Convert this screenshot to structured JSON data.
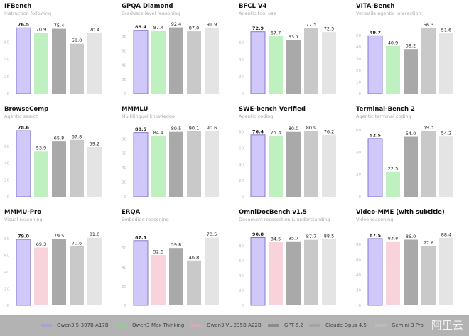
{
  "legend": [
    {
      "name": "Qwen3.5-397B-A17B",
      "color": "#cfc8f8",
      "border": "#7b6ec9"
    },
    {
      "name": "Qwen3-Max-Thinking",
      "color": "#bff0c0"
    },
    {
      "name": "Qwen3-VL-235B-A22B",
      "color": "#f9d3dc"
    },
    {
      "name": "GPT-5.2",
      "color": "#a9a9a9"
    },
    {
      "name": "Claude Opus 4.5",
      "color": "#c9c9c9"
    },
    {
      "name": "Gemini 3 Pro",
      "color": "#e4e4e4"
    }
  ],
  "watermark": "阿里云",
  "chart_data": [
    {
      "type": "bar",
      "title": "IFBench",
      "subtitle": "Instruction following",
      "categories": [
        "Qwen3.5-397B-A17B",
        "Qwen3-Max-Thinking",
        "GPT-5.2",
        "Claude Opus 4.5",
        "Gemini 3 Pro"
      ],
      "values": [
        76.5,
        70.9,
        75.4,
        58.0,
        70.4
      ],
      "yticks": [
        0,
        20,
        40,
        60
      ],
      "ylim": [
        0,
        80
      ]
    },
    {
      "type": "bar",
      "title": "GPQA Diamond",
      "subtitle": "Graduate-level reasoning",
      "categories": [
        "Qwen3.5-397B-A17B",
        "Qwen3-Max-Thinking",
        "GPT-5.2",
        "Claude Opus 4.5",
        "Gemini 3 Pro"
      ],
      "values": [
        88.4,
        87.4,
        92.4,
        87.0,
        91.9
      ],
      "yticks": [
        0,
        20,
        40,
        60,
        80
      ],
      "ylim": [
        0,
        96
      ]
    },
    {
      "type": "bar",
      "title": "BFCL V4",
      "subtitle": "Agentic tool use",
      "categories": [
        "Qwen3.5-397B-A17B",
        "Qwen3-Max-Thinking",
        "GPT-5.2",
        "Claude Opus 4.5",
        "Gemini 3 Pro"
      ],
      "values": [
        72.9,
        67.7,
        63.1,
        77.5,
        72.5
      ],
      "yticks": [
        0,
        20,
        40,
        60
      ],
      "ylim": [
        0,
        81
      ]
    },
    {
      "type": "bar",
      "title": "VITA-Bench",
      "subtitle": "Versatile agentic interaction",
      "categories": [
        "Qwen3.5-397B-A17B",
        "Qwen3-Max-Thinking",
        "GPT-5.2",
        "Claude Opus 4.5",
        "Gemini 3 Pro"
      ],
      "values": [
        49.7,
        40.9,
        38.2,
        56.3,
        51.6
      ],
      "yticks": [
        0,
        10,
        20,
        30,
        40,
        50
      ],
      "ylim": [
        0,
        59
      ]
    },
    {
      "type": "bar",
      "title": "BrowseComp",
      "subtitle": "Agentic search",
      "categories": [
        "Qwen3.5-397B-A17B",
        "Qwen3-Max-Thinking",
        "GPT-5.2",
        "Claude Opus 4.5",
        "Gemini 3 Pro"
      ],
      "values": [
        78.6,
        53.9,
        65.8,
        67.8,
        59.2
      ],
      "yticks": [
        0,
        20,
        40,
        60
      ],
      "ylim": [
        0,
        82
      ]
    },
    {
      "type": "bar",
      "title": "MMMLU",
      "subtitle": "Multilingual knowledge",
      "categories": [
        "Qwen3.5-397B-A17B",
        "Qwen3-Max-Thinking",
        "GPT-5.2",
        "Claude Opus 4.5",
        "Gemini 3 Pro"
      ],
      "values": [
        88.5,
        84.4,
        89.5,
        90.1,
        90.6
      ],
      "yticks": [
        0,
        20,
        40,
        60,
        80
      ],
      "ylim": [
        0,
        95
      ]
    },
    {
      "type": "bar",
      "title": "SWE-bench Verified",
      "subtitle": "Agentic coding",
      "categories": [
        "Qwen3.5-397B-A17B",
        "Qwen3-Max-Thinking",
        "GPT-5.2",
        "Claude Opus 4.5",
        "Gemini 3 Pro"
      ],
      "values": [
        76.4,
        75.3,
        80.0,
        80.9,
        76.2
      ],
      "yticks": [
        0,
        20,
        40,
        60,
        80
      ],
      "ylim": [
        0,
        85
      ]
    },
    {
      "type": "bar",
      "title": "Terminal-Bench 2",
      "subtitle": "Agentic terminal coding",
      "categories": [
        "Qwen3.5-397B-A17B",
        "Qwen3-Max-Thinking",
        "GPT-5.2",
        "Claude Opus 4.5",
        "Gemini 3 Pro"
      ],
      "values": [
        52.5,
        22.5,
        54.0,
        59.3,
        54.2
      ],
      "yticks": [
        0,
        20,
        40,
        60
      ],
      "ylim": [
        0,
        62
      ]
    },
    {
      "type": "bar",
      "title": "MMMU-Pro",
      "subtitle": "Visual reasoning",
      "categories": [
        "Qwen3.5-397B-A17B",
        "Qwen3-VL-235B-A22B",
        "GPT-5.2",
        "Claude Opus 4.5",
        "Gemini 3 Pro"
      ],
      "values": [
        79.0,
        69.3,
        79.5,
        70.6,
        81.0
      ],
      "yticks": [
        0,
        20,
        40,
        60,
        80
      ],
      "ylim": [
        0,
        85
      ]
    },
    {
      "type": "bar",
      "title": "ERQA",
      "subtitle": "Embodied reasoning",
      "categories": [
        "Qwen3.5-397B-A17B",
        "Qwen3-VL-235B-A22B",
        "GPT-5.2",
        "Claude Opus 4.5",
        "Gemini 3 Pro"
      ],
      "values": [
        67.5,
        52.5,
        59.8,
        46.8,
        70.5
      ],
      "yticks": [
        0,
        20,
        40,
        60
      ],
      "ylim": [
        0,
        74
      ]
    },
    {
      "type": "bar",
      "title": "OmniDocBench v1.5",
      "subtitle": "Document recognition & understanding",
      "categories": [
        "Qwen3.5-397B-A17B",
        "Qwen3-VL-235B-A22B",
        "GPT-5.2",
        "Claude Opus 4.5",
        "Gemini 3 Pro"
      ],
      "values": [
        90.8,
        84.5,
        85.7,
        87.7,
        88.5
      ],
      "yticks": [
        0,
        20,
        40,
        60,
        80
      ],
      "ylim": [
        0,
        95
      ]
    },
    {
      "type": "bar",
      "title": "Video-MME (with subtitle)",
      "subtitle": "Video reasoning",
      "categories": [
        "Qwen3.5-397B-A17B",
        "Qwen3-VL-235B-A22B",
        "GPT-5.2",
        "Claude Opus 4.5",
        "Gemini 3 Pro"
      ],
      "values": [
        87.5,
        83.8,
        86.0,
        77.6,
        88.4
      ],
      "yticks": [
        0,
        20,
        40,
        60,
        80
      ],
      "ylim": [
        0,
        93
      ]
    }
  ]
}
